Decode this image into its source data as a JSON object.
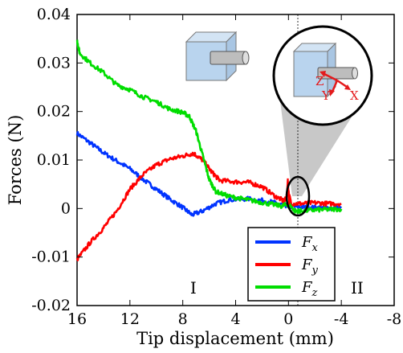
{
  "chart_data": {
    "type": "line",
    "xlabel": "Tip displacement (mm)",
    "ylabel": "Forces (N)",
    "xlim": [
      16,
      -8
    ],
    "ylim": [
      -0.02,
      0.04
    ],
    "x_ticks": [
      "16",
      "12",
      "8",
      "4",
      "0",
      "-4",
      "-8"
    ],
    "y_ticks": [
      "-0.02",
      "-0.01",
      "0",
      "0.01",
      "0.02",
      "0.03",
      "0.04"
    ],
    "grid": false,
    "legend_position": "bottom-right",
    "vertical_reference_x": 0,
    "regions": [
      {
        "label": "I",
        "x": 7.2
      },
      {
        "label": "II",
        "x": -5.2
      }
    ],
    "series": [
      {
        "name": "Fx",
        "base": "F",
        "sub": "x",
        "color": "#0033ff",
        "points": [
          [
            16,
            0.0155
          ],
          [
            15,
            0.0135
          ],
          [
            14,
            0.0115
          ],
          [
            13,
            0.0098
          ],
          [
            12,
            0.0082
          ],
          [
            11,
            0.006
          ],
          [
            10,
            0.004
          ],
          [
            9,
            0.002
          ],
          [
            8,
            0.0002
          ],
          [
            7.3,
            -0.0013
          ],
          [
            6.5,
            -0.0005
          ],
          [
            5.5,
            0.001
          ],
          [
            4.5,
            0.0018
          ],
          [
            3,
            0.002
          ],
          [
            1.5,
            0.0015
          ],
          [
            0.5,
            0.0008
          ],
          [
            0,
            0.0005
          ],
          [
            -1,
            0.0003
          ],
          [
            -2,
            0.0002
          ],
          [
            -3,
            0.0001
          ],
          [
            -4,
            0.0001
          ]
        ]
      },
      {
        "name": "Fy",
        "base": "F",
        "sub": "y",
        "color": "#ff0000",
        "points": [
          [
            16,
            -0.0105
          ],
          [
            15,
            -0.007
          ],
          [
            14,
            -0.004
          ],
          [
            13,
            -0.0005
          ],
          [
            12,
            0.004
          ],
          [
            11,
            0.007
          ],
          [
            10,
            0.009
          ],
          [
            9,
            0.0102
          ],
          [
            8,
            0.0108
          ],
          [
            7.2,
            0.0114
          ],
          [
            6.5,
            0.01
          ],
          [
            5.8,
            0.0075
          ],
          [
            5.2,
            0.0058
          ],
          [
            4,
            0.0055
          ],
          [
            3,
            0.0054
          ],
          [
            2,
            0.0045
          ],
          [
            1,
            0.0025
          ],
          [
            0.3,
            0.0015
          ],
          [
            0,
            0.0035
          ],
          [
            -0.2,
            0.001
          ],
          [
            -1,
            0.001
          ],
          [
            -2,
            0.0012
          ],
          [
            -3,
            0.001
          ],
          [
            -4,
            0.001
          ]
        ]
      },
      {
        "name": "Fz",
        "base": "F",
        "sub": "z",
        "color": "#00dd00",
        "points": [
          [
            16,
            0.0345
          ],
          [
            15.8,
            0.032
          ],
          [
            15,
            0.03
          ],
          [
            14,
            0.028
          ],
          [
            13,
            0.0255
          ],
          [
            12,
            0.0245
          ],
          [
            11,
            0.023
          ],
          [
            10,
            0.022
          ],
          [
            9,
            0.0205
          ],
          [
            8,
            0.0198
          ],
          [
            7.5,
            0.019
          ],
          [
            7,
            0.016
          ],
          [
            6.5,
            0.011
          ],
          [
            6,
            0.006
          ],
          [
            5.5,
            0.0035
          ],
          [
            4.5,
            0.0025
          ],
          [
            3.5,
            0.002
          ],
          [
            2.5,
            0.0015
          ],
          [
            1.5,
            0.001
          ],
          [
            0.5,
            0.0005
          ],
          [
            0,
            0.001
          ],
          [
            -0.5,
            -0.0005
          ],
          [
            -1,
            -0.0005
          ],
          [
            -2,
            -0.0003
          ],
          [
            -3,
            -0.0002
          ],
          [
            -4,
            -0.0001
          ]
        ]
      }
    ],
    "inset_axes": [
      "Z",
      "Y",
      "X"
    ]
  }
}
